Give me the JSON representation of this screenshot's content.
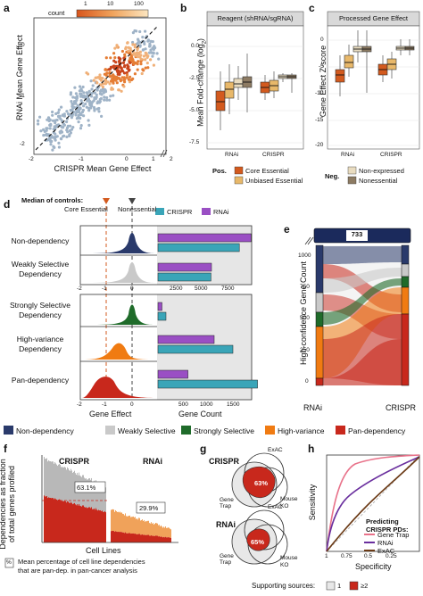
{
  "colors": {
    "core_essential": "#d35a1e",
    "unbiased_essential": "#e8b86a",
    "nonexpressed": "#e9dcc0",
    "nonessential": "#8d7b63",
    "non_dependency": "#2a3a6b",
    "weakly_selective": "#c9c9c9",
    "strongly_selective": "#1f6b2a",
    "high_variance": "#f07b12",
    "pan_dependency": "#c8281c",
    "crispr_bar": "#3aa5b8",
    "rnai_bar": "#9a4fc4"
  },
  "panel_a": {
    "letter": "a",
    "legend_title": "count",
    "legend_ticks": [
      "1",
      "10",
      "100"
    ],
    "ylabel": "RNAi Mean Gene Effect",
    "xlabel": "CRISPR Mean Gene Effect",
    "xticks": [
      "-2",
      "-1",
      "0",
      "1",
      "2"
    ],
    "yticks": [
      "-2",
      "-1",
      "0"
    ]
  },
  "panel_b": {
    "letter": "b",
    "header": "Reagent (shRNA/sgRNA)",
    "ylabel": "Mean Fold-change (log",
    "ylabel_sub": "2",
    "ylabel_end": ")",
    "yticks": [
      "0.0",
      "-2.5",
      "-5.0",
      "-7.5"
    ],
    "xticks": [
      "RNAi",
      "CRISPR"
    ],
    "legend_title": "Pos.",
    "legend": [
      "Core Essential",
      "Unbiased Essential"
    ]
  },
  "panel_c": {
    "letter": "c",
    "header": "Processed Gene Effect",
    "ylabel": "Gene Effect Z-score",
    "yticks": [
      "0",
      "-5",
      "-10",
      "-15",
      "-20"
    ],
    "xticks": [
      "RNAi",
      "CRISPR"
    ],
    "legend_title": "Neg.",
    "legend": [
      "Non-expressed",
      "Nonessential"
    ]
  },
  "panel_d": {
    "letter": "d",
    "median_title": "Median of controls:",
    "median_core": "Core Essential",
    "median_non": "Nonessential",
    "bar_legend": [
      "CRISPR",
      "RNAi"
    ],
    "categories": [
      "Non-dependency",
      "Weakly Selective Dependency",
      "Strongly Selective Dependency",
      "High-variance Dependency",
      "Pan-dependency"
    ],
    "category_lines": [
      [
        "Non-dependency"
      ],
      [
        "Weakly Selective",
        "Dependency"
      ],
      [
        "Strongly Selective",
        "Dependency"
      ],
      [
        "High-variance",
        "Dependency"
      ],
      [
        "Pan-dependency"
      ]
    ],
    "top_gene_ticks": [
      "-2",
      "-1",
      "0"
    ],
    "top_count_ticks": [
      "2500",
      "5000",
      "7500"
    ],
    "bottom_gene_ticks": [
      "-2",
      "-1",
      "0"
    ],
    "bottom_count_ticks": [
      "500",
      "1000",
      "1500"
    ],
    "xlabel_gene": "Gene Effect",
    "xlabel_count": "Gene Count"
  },
  "chart_data": [
    {
      "type": "bar",
      "title": "",
      "xlabel": "Gene Count",
      "categories": [
        "Non-dependency",
        "Weakly Selective Dependency"
      ],
      "series": [
        {
          "name": "RNAi",
          "values": [
            8700,
            5000
          ]
        },
        {
          "name": "CRISPR",
          "values": [
            7600,
            4950
          ]
        }
      ],
      "xlim": [
        0,
        9000
      ]
    },
    {
      "type": "bar",
      "title": "",
      "xlabel": "Gene Count",
      "categories": [
        "Strongly Selective Dependency",
        "High-variance Dependency",
        "Pan-dependency"
      ],
      "series": [
        {
          "name": "RNAi",
          "values": [
            75,
            1050,
            560
          ]
        },
        {
          "name": "CRISPR",
          "values": [
            150,
            1400,
            1860
          ]
        }
      ],
      "xlim": [
        0,
        1900
      ]
    }
  ],
  "panel_e": {
    "letter": "e",
    "top_count": "733",
    "ylabel": "High-confidence Gene Count",
    "yticks": [
      "1000",
      "750",
      "500",
      "250",
      "0"
    ],
    "xticks": [
      "RNAi",
      "CRISPR"
    ]
  },
  "category_legend": [
    "Non-dependency",
    "Weakly Selective",
    "Strongly Selective",
    "High-variance",
    "Pan-dependency"
  ],
  "panel_f": {
    "letter": "f",
    "ylabel_1": "Dependencies as fraction",
    "ylabel_2": "of total genes profiled",
    "crispr_label": "CRISPR",
    "rnai_label": "RNAi",
    "crispr_pct": "63.1%",
    "rnai_pct": "29.9%",
    "xlabel": "Cell Lines",
    "note_box": "%",
    "note_line1": "Mean percentage of cell line dependencies",
    "note_line2": "that are pan-dep. in pan-cancer analysis"
  },
  "panel_g": {
    "letter": "g",
    "crispr_title": "CRISPR",
    "rnai_title": "RNAi",
    "crispr_pct": "63%",
    "rnai_pct": "65%",
    "set_exac": "ExAC",
    "set_gene_trap": "Gene Trap",
    "set_mouse_1": "Mouse",
    "set_mouse_2": "KO",
    "supporting_label": "Supporting sources:",
    "support_1": "1",
    "support_2": "≥2"
  },
  "panel_h": {
    "letter": "h",
    "ylabel": "Sensitivity",
    "xlabel": "Specificity",
    "xticks": [
      "1",
      "0.75",
      "0.5",
      "0.25"
    ],
    "legend_title_1": "Predicting",
    "legend_title_2": "CRISPR PDs:",
    "legend": [
      "Gene Trap",
      "RNAi",
      "ExAC"
    ]
  }
}
